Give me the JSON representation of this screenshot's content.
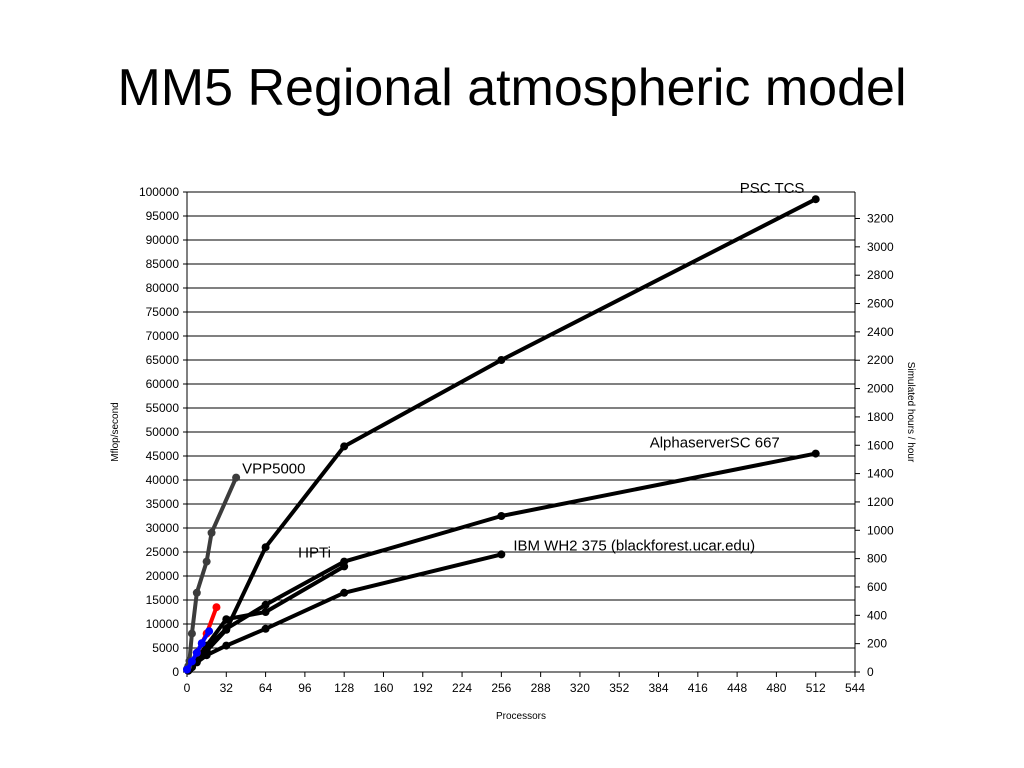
{
  "slide": {
    "title": "MM5 Regional atmospheric model"
  },
  "chart_data": {
    "type": "line",
    "title": "",
    "xlabel": "Processors",
    "ylabel": "Mflop/second",
    "y2label": "Simulated hours / hour",
    "xlim": [
      0,
      544
    ],
    "ylim": [
      0,
      100000
    ],
    "y2lim": [
      0,
      3387
    ],
    "x_ticks": [
      0,
      32,
      64,
      96,
      128,
      160,
      192,
      224,
      256,
      288,
      320,
      352,
      384,
      416,
      448,
      480,
      512,
      544
    ],
    "y_ticks": [
      0,
      5000,
      10000,
      15000,
      20000,
      25000,
      30000,
      35000,
      40000,
      45000,
      50000,
      55000,
      60000,
      65000,
      70000,
      75000,
      80000,
      85000,
      90000,
      95000,
      100000
    ],
    "y2_ticks": [
      0,
      200,
      400,
      600,
      800,
      1000,
      1200,
      1400,
      1600,
      1800,
      2000,
      2200,
      2400,
      2600,
      2800,
      3000,
      3200
    ],
    "grid": "horizontal",
    "colors": {
      "axis": "#000000",
      "grid": "#000000",
      "dark_series": "#000000",
      "gray_series": "#3c3c3c",
      "red_series": "#ff0000",
      "blue_series": "#0000ff"
    },
    "series": [
      {
        "name": "PSC TCS",
        "color": "#000000",
        "x": [
          4,
          8,
          16,
          32,
          64,
          128,
          256,
          512
        ],
        "y": [
          1000,
          2200,
          4400,
          8800,
          26000,
          47000,
          65000,
          98500
        ]
      },
      {
        "name": "AlphaserverSC 667",
        "color": "#000000",
        "x": [
          1,
          2,
          4,
          8,
          16,
          32,
          64,
          128,
          256,
          512
        ],
        "y": [
          300,
          600,
          1200,
          2500,
          5000,
          9000,
          14000,
          23000,
          32500,
          45500
        ]
      },
      {
        "name": "IBM WH2 375 (blackforest.ucar.edu)",
        "color": "#000000",
        "x": [
          1,
          2,
          4,
          8,
          16,
          32,
          64,
          128,
          256
        ],
        "y": [
          250,
          500,
          1000,
          2000,
          3500,
          5500,
          9000,
          16500,
          24500
        ]
      },
      {
        "name": "HPTi",
        "color": "#000000",
        "x": [
          1,
          2,
          4,
          8,
          16,
          32,
          64,
          128
        ],
        "y": [
          300,
          700,
          1400,
          2800,
          5500,
          11000,
          12500,
          22000
        ]
      },
      {
        "name": "VPP5000",
        "color": "#3c3c3c",
        "x": [
          0,
          1,
          2,
          4,
          8,
          16,
          20,
          40
        ],
        "y": [
          600,
          1200,
          2300,
          8000,
          16500,
          23000,
          29000,
          40500
        ]
      },
      {
        "name": "",
        "color": "#ff0000",
        "x": [
          8,
          16,
          24
        ],
        "y": [
          4000,
          8000,
          13500
        ]
      },
      {
        "name": "",
        "color": "#0000ff",
        "x": [
          0,
          4,
          8,
          12,
          18
        ],
        "y": [
          500,
          2200,
          4000,
          6000,
          8500
        ]
      }
    ],
    "annotations": [
      {
        "text": "PSC TCS",
        "series": "PSC TCS"
      },
      {
        "text": "AlphaserverSC 667",
        "series": "AlphaserverSC 667"
      },
      {
        "text": "IBM WH2 375 (blackforest.ucar.edu)",
        "series": "IBM WH2 375 (blackforest.ucar.edu)"
      },
      {
        "text": "HPTi",
        "series": "HPTi"
      },
      {
        "text": "VPP5000",
        "series": "VPP5000"
      }
    ]
  }
}
